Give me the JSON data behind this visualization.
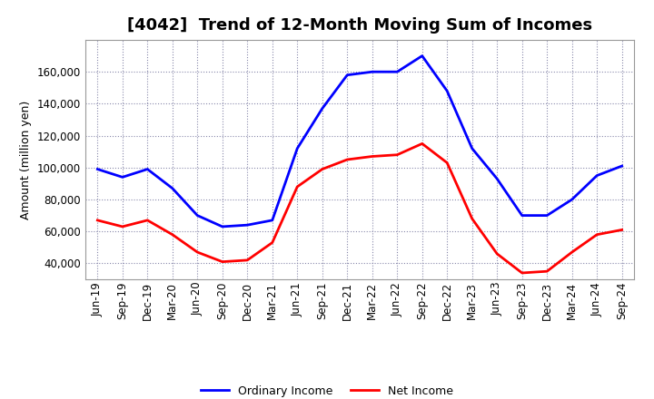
{
  "title": "[4042]  Trend of 12-Month Moving Sum of Incomes",
  "ylabel": "Amount (million yen)",
  "x_labels": [
    "Jun-19",
    "Sep-19",
    "Dec-19",
    "Mar-20",
    "Jun-20",
    "Sep-20",
    "Dec-20",
    "Mar-21",
    "Jun-21",
    "Sep-21",
    "Dec-21",
    "Mar-22",
    "Jun-22",
    "Sep-22",
    "Dec-22",
    "Mar-23",
    "Jun-23",
    "Sep-23",
    "Dec-23",
    "Mar-24",
    "Jun-24",
    "Sep-24"
  ],
  "ordinary_income": [
    99000,
    94000,
    99000,
    87000,
    70000,
    63000,
    64000,
    67000,
    112000,
    137000,
    158000,
    160000,
    160000,
    170000,
    148000,
    112000,
    93000,
    70000,
    70000,
    80000,
    95000,
    101000
  ],
  "net_income": [
    67000,
    63000,
    67000,
    58000,
    47000,
    41000,
    42000,
    53000,
    88000,
    99000,
    105000,
    107000,
    108000,
    115000,
    103000,
    68000,
    46000,
    34000,
    35000,
    47000,
    58000,
    61000
  ],
  "ordinary_color": "#0000ff",
  "net_color": "#ff0000",
  "ylim_min": 30000,
  "ylim_max": 180000,
  "yticks": [
    40000,
    60000,
    80000,
    100000,
    120000,
    140000,
    160000
  ],
  "background_color": "#ffffff",
  "plot_bg_color": "#ffffff",
  "grid_color": "#8888aa",
  "title_fontsize": 13,
  "axis_fontsize": 8.5,
  "ylabel_fontsize": 9,
  "legend_labels": [
    "Ordinary Income",
    "Net Income"
  ],
  "line_width": 2.0
}
